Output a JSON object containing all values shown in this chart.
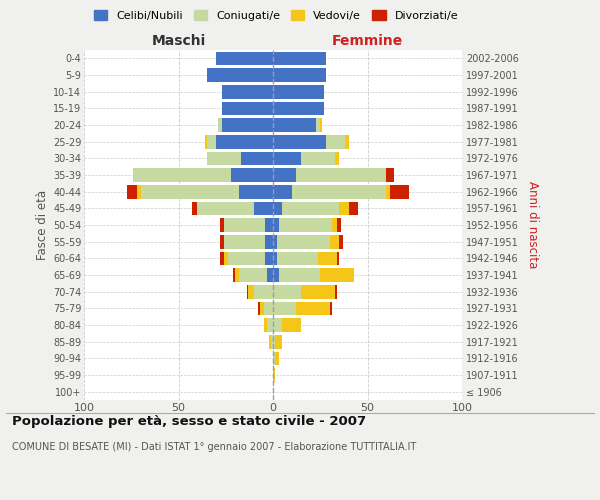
{
  "age_groups": [
    "100+",
    "95-99",
    "90-94",
    "85-89",
    "80-84",
    "75-79",
    "70-74",
    "65-69",
    "60-64",
    "55-59",
    "50-54",
    "45-49",
    "40-44",
    "35-39",
    "30-34",
    "25-29",
    "20-24",
    "15-19",
    "10-14",
    "5-9",
    "0-4"
  ],
  "birth_years": [
    "≤ 1906",
    "1907-1911",
    "1912-1916",
    "1917-1921",
    "1922-1926",
    "1927-1931",
    "1932-1936",
    "1937-1941",
    "1942-1946",
    "1947-1951",
    "1952-1956",
    "1957-1961",
    "1962-1966",
    "1967-1971",
    "1972-1976",
    "1977-1981",
    "1982-1986",
    "1987-1991",
    "1992-1996",
    "1997-2001",
    "2002-2006"
  ],
  "maschi_celibi": [
    0,
    0,
    0,
    0,
    0,
    0,
    0,
    3,
    4,
    4,
    4,
    10,
    18,
    22,
    17,
    30,
    27,
    27,
    27,
    35,
    30
  ],
  "maschi_coniugati": [
    0,
    0,
    0,
    1,
    3,
    5,
    10,
    15,
    20,
    22,
    22,
    30,
    52,
    52,
    18,
    5,
    2,
    0,
    0,
    0,
    0
  ],
  "maschi_vedovi": [
    0,
    0,
    0,
    1,
    2,
    2,
    3,
    2,
    2,
    0,
    0,
    0,
    2,
    0,
    0,
    1,
    0,
    0,
    0,
    0,
    0
  ],
  "maschi_divorziati": [
    0,
    0,
    0,
    0,
    0,
    1,
    1,
    1,
    2,
    2,
    2,
    3,
    5,
    0,
    0,
    0,
    0,
    0,
    0,
    0,
    0
  ],
  "femmine_nubili": [
    0,
    0,
    0,
    0,
    0,
    0,
    0,
    3,
    2,
    2,
    3,
    5,
    10,
    12,
    15,
    28,
    23,
    27,
    27,
    28,
    28
  ],
  "femmine_coniugate": [
    0,
    0,
    1,
    1,
    5,
    12,
    15,
    22,
    22,
    28,
    28,
    30,
    50,
    48,
    18,
    10,
    2,
    0,
    0,
    0,
    0
  ],
  "femmine_vedove": [
    0,
    1,
    2,
    4,
    10,
    18,
    18,
    18,
    10,
    5,
    3,
    5,
    2,
    0,
    2,
    2,
    1,
    0,
    0,
    0,
    0
  ],
  "femmine_divorziate": [
    0,
    0,
    0,
    0,
    0,
    1,
    1,
    0,
    1,
    2,
    2,
    5,
    10,
    4,
    0,
    0,
    0,
    0,
    0,
    0,
    0
  ],
  "color_celibi": "#4472c4",
  "color_coniugati": "#c5d9a0",
  "color_vedovi": "#f5c518",
  "color_divorziati": "#cc2200",
  "xlim": 100,
  "title": "Popolazione per età, sesso e stato civile - 2007",
  "subtitle": "COMUNE DI BESATE (MI) - Dati ISTAT 1° gennaio 2007 - Elaborazione TUTTITALIA.IT",
  "bg_color": "#f0f0ee",
  "plot_bg": "#ffffff"
}
